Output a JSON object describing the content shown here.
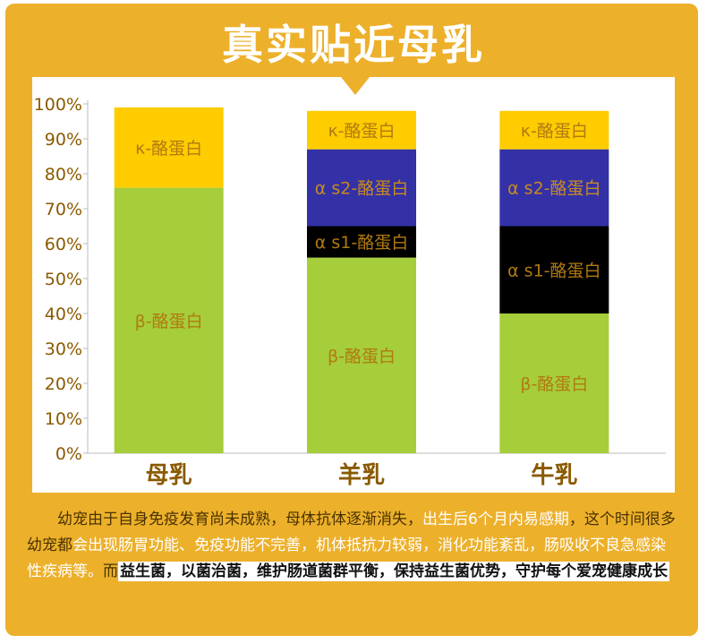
{
  "title": "真实贴近母乳",
  "chart_data": {
    "type": "bar",
    "stacked": true,
    "categories": [
      "母乳",
      "羊乳",
      "牛乳"
    ],
    "ylim": [
      0,
      100
    ],
    "yticks": [
      "0%",
      "10%",
      "20%",
      "30%",
      "40%",
      "50%",
      "60%",
      "70%",
      "80%",
      "90%",
      "100%"
    ],
    "grid": false,
    "series": [
      {
        "name": "β-酪蛋白",
        "color": "#a6cd3a",
        "label_color": "#b07a10",
        "values": [
          76,
          56,
          40
        ]
      },
      {
        "name": "α s1-酪蛋白",
        "color": "#000000",
        "label_color": "#b07a10",
        "values": [
          0,
          9,
          25
        ]
      },
      {
        "name": "α s2-酪蛋白",
        "color": "#3331a5",
        "label_color": "#c88a20",
        "values": [
          0,
          22,
          22
        ]
      },
      {
        "name": "κ-酪蛋白",
        "color": "#ffcc00",
        "label_color": "#b07a10",
        "values": [
          23,
          11,
          11
        ]
      }
    ],
    "category_label_color": "#8a5a00"
  },
  "text": {
    "part1": "幼宠由于自身免疫发育尚未成熟，母体抗体逐渐消失，",
    "part2": "出生后6个月内易感期",
    "part3": "，这个时间很多幼宠都",
    "part4": "会出现肠胃功能、免疫功能不完善，机体抵抗力较弱，消化功能紊乱，肠吸收不良急感染性疾病等。",
    "part5": "而",
    "part6": "益生菌，以菌治菌，维护肠道菌群平衡，保持益生菌优势，守护每个爱宠健康成长"
  }
}
